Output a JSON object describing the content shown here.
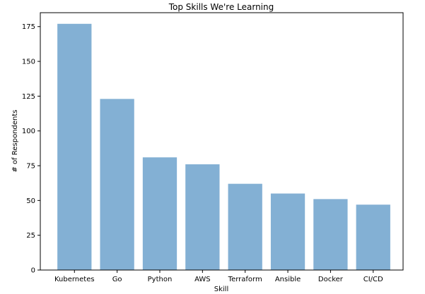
{
  "chart_data": {
    "type": "bar",
    "title": "Top Skills We're Learning",
    "xlabel": "Skill",
    "ylabel": "# of Respondents",
    "categories": [
      "Kubernetes",
      "Go",
      "Python",
      "AWS",
      "Terraform",
      "Ansible",
      "Docker",
      "CI/CD"
    ],
    "values": [
      177,
      123,
      81,
      76,
      62,
      55,
      51,
      47
    ],
    "ylim": [
      0,
      185
    ],
    "yticks": [
      0,
      25,
      50,
      75,
      100,
      125,
      150,
      175
    ],
    "bar_color": "#83b0d4",
    "grid": false,
    "legend": "none"
  }
}
